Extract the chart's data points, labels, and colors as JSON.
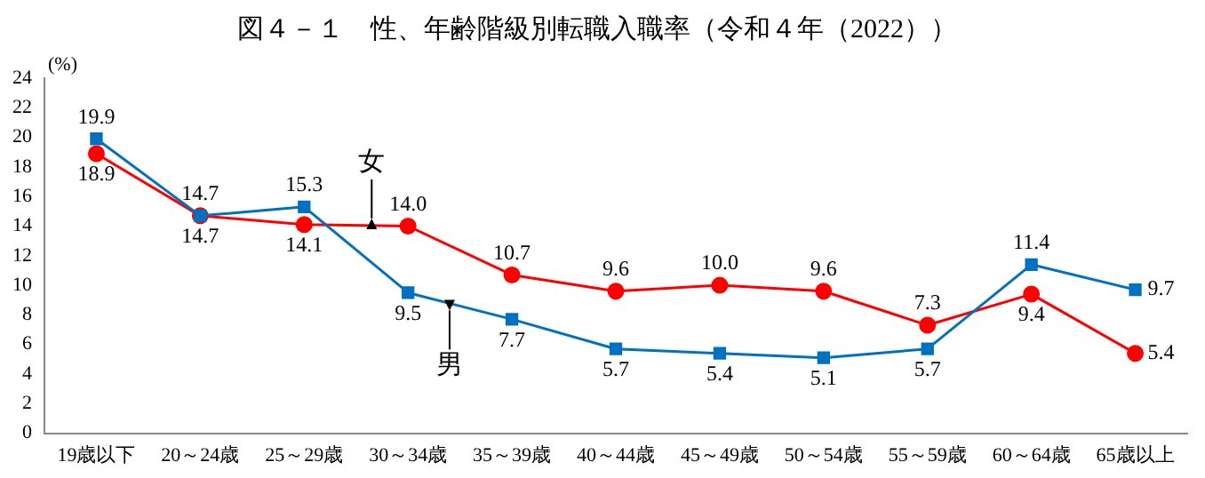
{
  "chart_data": {
    "type": "line",
    "title": "図４－１　性、年齢階級別転職入職率（令和４年（2022））",
    "ylabel": "(%)",
    "categories": [
      "19歳以下",
      "20～24歳",
      "25～29歳",
      "30～34歳",
      "35～39歳",
      "40～44歳",
      "45～49歳",
      "50～54歳",
      "55～59歳",
      "60～64歳",
      "65歳以上"
    ],
    "series": [
      {
        "name": "男",
        "color": "#0070c0",
        "marker": "square",
        "values": [
          19.9,
          14.7,
          15.3,
          9.5,
          7.7,
          5.7,
          5.4,
          5.1,
          5.7,
          11.4,
          9.7
        ],
        "value_labels": [
          "19.9",
          "14.7",
          "15.3",
          "9.5",
          "7.7",
          "5.7",
          "5.4",
          "5.1",
          "5.7",
          "11.4",
          "9.7"
        ]
      },
      {
        "name": "女",
        "color": "#ff0000",
        "marker": "circle",
        "values": [
          18.9,
          14.7,
          14.1,
          14.0,
          10.7,
          9.6,
          10.0,
          9.6,
          7.3,
          9.4,
          5.4
        ],
        "value_labels": [
          "18.9",
          "14.7",
          "14.1",
          "14.0",
          "10.7",
          "9.6",
          "10.0",
          "9.6",
          "7.3",
          "9.4",
          "5.4"
        ]
      }
    ],
    "ylim": [
      0,
      24
    ],
    "yticks": [
      0,
      2,
      4,
      6,
      8,
      10,
      12,
      14,
      16,
      18,
      20,
      22,
      24
    ],
    "grid": false,
    "legend": false
  }
}
